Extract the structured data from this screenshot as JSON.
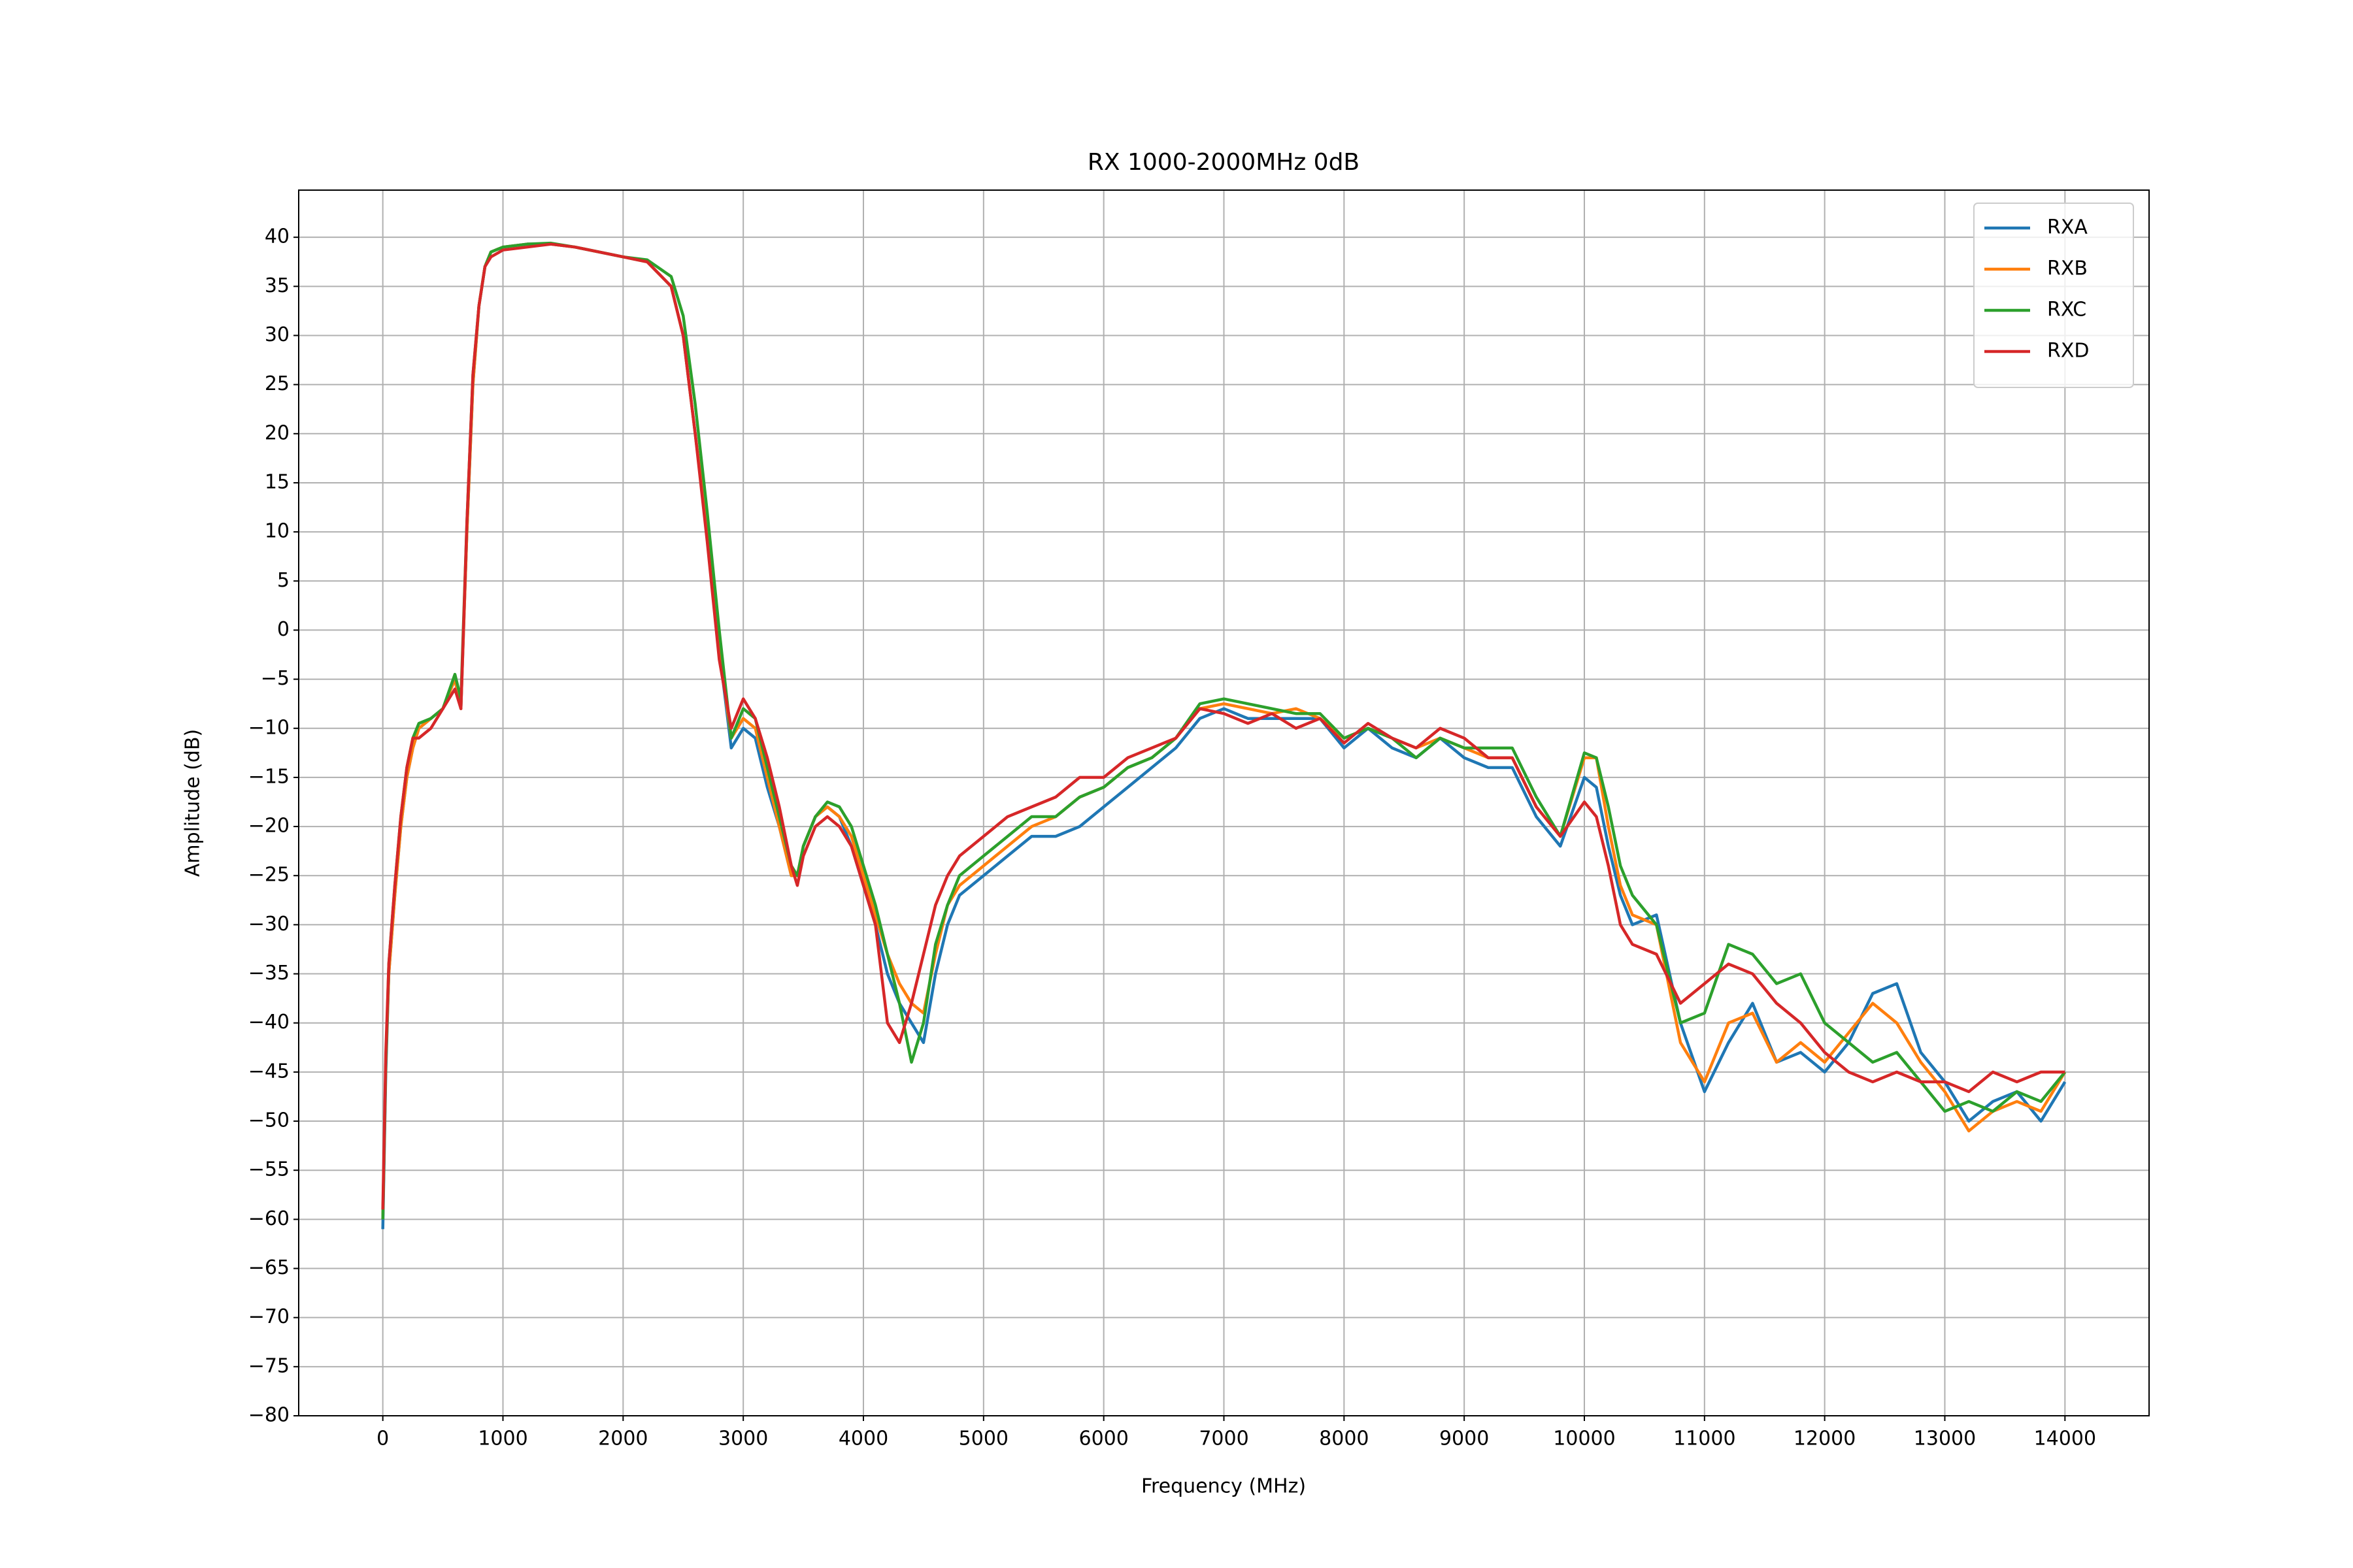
{
  "chart_data": {
    "type": "line",
    "title": "RX 1000-2000MHz 0dB",
    "x_label": "Frequency (MHz)",
    "y_label": "Amplitude (dB)",
    "x": [
      0,
      25,
      50,
      100,
      150,
      200,
      250,
      300,
      400,
      500,
      600,
      650,
      700,
      750,
      800,
      850,
      900,
      1000,
      1200,
      1400,
      1600,
      1800,
      2000,
      2200,
      2400,
      2500,
      2600,
      2700,
      2800,
      2900,
      3000,
      3100,
      3200,
      3300,
      3400,
      3450,
      3500,
      3600,
      3700,
      3800,
      3900,
      4000,
      4100,
      4200,
      4300,
      4400,
      4500,
      4600,
      4700,
      4800,
      5000,
      5200,
      5400,
      5600,
      5800,
      6000,
      6200,
      6400,
      6600,
      6800,
      7000,
      7200,
      7400,
      7600,
      7800,
      8000,
      8200,
      8400,
      8600,
      8800,
      9000,
      9200,
      9400,
      9600,
      9800,
      10000,
      10100,
      10200,
      10300,
      10400,
      10600,
      10800,
      11000,
      11200,
      11400,
      11600,
      11800,
      12000,
      12200,
      12400,
      12600,
      12800,
      13000,
      13200,
      13400,
      13600,
      13800,
      14000
    ],
    "series": [
      {
        "name": "RXA",
        "color": "#1f77b4",
        "values": [
          -61,
          -45,
          -35,
          -27,
          -20,
          -15,
          -12,
          -10,
          -9,
          -8,
          -5,
          -8,
          10,
          25,
          33,
          37,
          38.5,
          39,
          39.3,
          39.3,
          39,
          38.5,
          38,
          37.5,
          35,
          30,
          20,
          10,
          -2,
          -12,
          -10,
          -11,
          -16,
          -20,
          -25,
          -25,
          -22,
          -19,
          -18,
          -19,
          -22,
          -26,
          -30,
          -35,
          -38,
          -40,
          -42,
          -35,
          -30,
          -27,
          -25,
          -23,
          -21,
          -21,
          -20,
          -18,
          -16,
          -14,
          -12,
          -9,
          -8,
          -9,
          -9,
          -9,
          -9,
          -12,
          -10,
          -12,
          -13,
          -11,
          -13,
          -14,
          -14,
          -19,
          -22,
          -15,
          -16,
          -22,
          -27,
          -30,
          -29,
          -40,
          -47,
          -42,
          -38,
          -44,
          -43,
          -45,
          -42,
          -37,
          -36,
          -43,
          -46,
          -50,
          -48,
          -47,
          -50,
          -46
        ]
      },
      {
        "name": "RXB",
        "color": "#ff7f0e",
        "values": [
          -60,
          -44,
          -35,
          -27,
          -20,
          -15,
          -12,
          -10,
          -9,
          -8,
          -5,
          -8,
          10,
          25,
          33,
          37,
          38.5,
          39,
          39.3,
          39.3,
          39,
          38.5,
          38,
          37.5,
          35,
          30,
          20,
          10,
          -2,
          -11,
          -9,
          -10,
          -15,
          -20,
          -25,
          -25,
          -22,
          -19,
          -18,
          -19,
          -21,
          -25,
          -29,
          -33,
          -36,
          -38,
          -39,
          -33,
          -28,
          -26,
          -24,
          -22,
          -20,
          -19,
          -17,
          -16,
          -14,
          -13,
          -11,
          -8,
          -7.5,
          -8,
          -8.5,
          -8,
          -9,
          -11,
          -10,
          -11,
          -12,
          -11,
          -12,
          -13,
          -13,
          -18,
          -21,
          -13,
          -13,
          -20,
          -26,
          -29,
          -30,
          -42,
          -46,
          -40,
          -39,
          -44,
          -42,
          -44,
          -41,
          -38,
          -40,
          -44,
          -47,
          -51,
          -49,
          -48,
          -49,
          -45
        ]
      },
      {
        "name": "RXC",
        "color": "#2ca02c",
        "values": [
          -60,
          -44,
          -34,
          -26,
          -19,
          -14,
          -11,
          -9.5,
          -9,
          -8,
          -4.5,
          -7,
          11,
          26,
          33,
          37,
          38.5,
          39,
          39.3,
          39.4,
          39,
          38.5,
          38,
          37.7,
          36,
          32,
          23,
          12,
          0,
          -11,
          -8,
          -9,
          -14,
          -19,
          -24,
          -25,
          -22,
          -19,
          -17.5,
          -18,
          -20,
          -24,
          -28,
          -33,
          -38,
          -44,
          -40,
          -32,
          -28,
          -25,
          -23,
          -21,
          -19,
          -19,
          -17,
          -16,
          -14,
          -13,
          -11,
          -7.5,
          -7,
          -7.5,
          -8,
          -8.5,
          -8.5,
          -11,
          -10,
          -11,
          -13,
          -11,
          -12,
          -12,
          -12,
          -17,
          -21,
          -12.5,
          -13,
          -18,
          -24,
          -27,
          -30,
          -40,
          -39,
          -32,
          -33,
          -36,
          -35,
          -40,
          -42,
          -44,
          -43,
          -46,
          -49,
          -48,
          -49,
          -47,
          -48,
          -45
        ]
      },
      {
        "name": "RXD",
        "color": "#d62728",
        "values": [
          -59,
          -43,
          -34,
          -26,
          -19,
          -14,
          -11,
          -11,
          -10,
          -8,
          -6,
          -8,
          11,
          26,
          33,
          37,
          38,
          38.7,
          39,
          39.3,
          39,
          38.5,
          38,
          37.5,
          35,
          30,
          20,
          9,
          -3,
          -10,
          -7,
          -9,
          -13,
          -18,
          -24,
          -26,
          -23,
          -20,
          -19,
          -20,
          -22,
          -26,
          -30,
          -40,
          -42,
          -38,
          -33,
          -28,
          -25,
          -23,
          -21,
          -19,
          -18,
          -17,
          -15,
          -15,
          -13,
          -12,
          -11,
          -8,
          -8.5,
          -9.5,
          -8.5,
          -10,
          -9,
          -11.5,
          -9.5,
          -11,
          -12,
          -10,
          -11,
          -13,
          -13,
          -18,
          -21,
          -17.5,
          -19,
          -24,
          -30,
          -32,
          -33,
          -38,
          -36,
          -34,
          -35,
          -38,
          -40,
          -43,
          -45,
          -46,
          -45,
          -46,
          -46,
          -47,
          -45,
          -46,
          -45,
          -45
        ]
      }
    ],
    "xlim": [
      -700,
      14700
    ],
    "ylim": [
      -80,
      44.8
    ],
    "xticks": [
      0,
      1000,
      2000,
      3000,
      4000,
      5000,
      6000,
      7000,
      8000,
      9000,
      10000,
      11000,
      12000,
      13000,
      14000
    ],
    "yticks": [
      {
        "value": -80,
        "label": "−80"
      },
      {
        "value": -75,
        "label": "−75"
      },
      {
        "value": -70,
        "label": "−70"
      },
      {
        "value": -65,
        "label": "−65"
      },
      {
        "value": -60,
        "label": "−60"
      },
      {
        "value": -55,
        "label": "−55"
      },
      {
        "value": -50,
        "label": "−50"
      },
      {
        "value": -45,
        "label": "−45"
      },
      {
        "value": -40,
        "label": "−40"
      },
      {
        "value": -35,
        "label": "−35"
      },
      {
        "value": -30,
        "label": "−30"
      },
      {
        "value": -25,
        "label": "−25"
      },
      {
        "value": -20,
        "label": "−20"
      },
      {
        "value": -15,
        "label": "−15"
      },
      {
        "value": -10,
        "label": "−10"
      },
      {
        "value": -5,
        "label": "−5"
      },
      0,
      5,
      10,
      15,
      20,
      25,
      30,
      35,
      40
    ],
    "grid": true,
    "legend": "upper right"
  }
}
